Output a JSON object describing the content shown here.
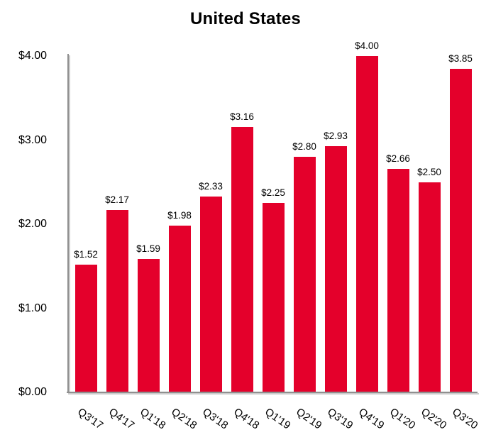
{
  "chart_data": {
    "type": "bar",
    "title": "United States",
    "categories": [
      "Q3'17",
      "Q4'17",
      "Q1'18",
      "Q2'18",
      "Q3'18",
      "Q4'18",
      "Q1'19",
      "Q2'19",
      "Q3'19",
      "Q4'19",
      "Q1'20",
      "Q2'20",
      "Q3'20"
    ],
    "values": [
      1.52,
      2.17,
      1.59,
      1.98,
      2.33,
      3.16,
      2.25,
      2.8,
      2.93,
      4.0,
      2.66,
      2.5,
      3.85
    ],
    "value_labels": [
      "$1.52",
      "$2.17",
      "$1.59",
      "$1.98",
      "$2.33",
      "$3.16",
      "$2.25",
      "$2.80",
      "$2.93",
      "$4.00",
      "$2.66",
      "$2.50",
      "$3.85"
    ],
    "y_ticks": [
      "$0.00",
      "$1.00",
      "$2.00",
      "$3.00",
      "$4.00"
    ],
    "ylim": [
      0,
      4
    ],
    "xlabel": "",
    "ylabel": "",
    "grid": false,
    "legend": false,
    "bar_color": "#e4002b",
    "axis_color": "#8f8f8f",
    "text_color": "#000000"
  }
}
